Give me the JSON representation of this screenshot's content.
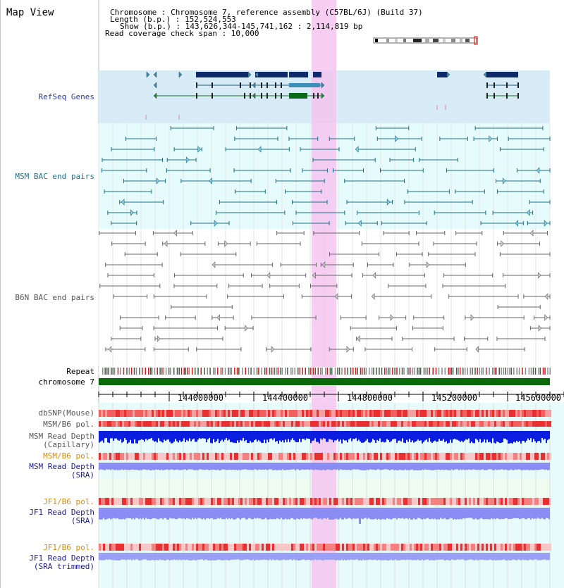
{
  "title": "Map View",
  "info": {
    "line1": "Chromosome      : Chromosome 7, reference assembly (C57BL/6J) (Build 37)",
    "line2": "Length (b.p.) : 152,524,553",
    "line3": "Show (b.p.) : 143,626,344-145,741,162 : 2,114,819 bp",
    "line4": "Read coverage check span : 10,000"
  },
  "tracks": {
    "refseq": "RefSeq Genes",
    "msm_bac": "MSM BAC end pairs",
    "b6n_bac": "B6N BAC end pairs",
    "repeat": "Repeat",
    "chromosome": "chromosome 7",
    "dbsnp": "dbSNP(Mouse)",
    "msm_b6_pol": "MSM/B6 pol.",
    "msm_depth_cap_1": "MSM Read Depth",
    "msm_depth_cap_2": "(Capillary)",
    "msm_b6_pol_2": "MSM/B6 pol.",
    "msm_depth_sra_1": "MSM Read Depth",
    "msm_depth_sra_2": "(SRA)",
    "jf1_b6_pol": "JF1/B6 pol.",
    "jf1_depth_sra_1": "JF1 Read Depth",
    "jf1_depth_sra_2": "(SRA)",
    "jf1_b6_pol_2": "JF1/B6 pol.",
    "jf1_depth_trim_1": "JF1 Read Depth",
    "jf1_depth_trim_2": "(SRA trimmed)"
  },
  "axis": {
    "ticks": [
      "144000000",
      "144400000",
      "144800000",
      "145200000",
      "145600000"
    ]
  },
  "colors": {
    "label_blue": "#2b3aa0",
    "label_teal": "#1f6f86",
    "label_gray": "#555555",
    "label_orange": "#e08a00",
    "label_navy": "#1a1a8c",
    "highlight": "#f5c6f0",
    "refseq_bg": "#d8ecf8",
    "msm_bg": "#e6fbfb",
    "gene_navy": "#0e2a6a",
    "gene_teal": "#3b8fb8",
    "gene_green": "#0a6a1a",
    "chrom_green": "#0a6a0a",
    "depth_blue": "#0b1ee0",
    "depth_light": "#8c8cf5"
  }
}
